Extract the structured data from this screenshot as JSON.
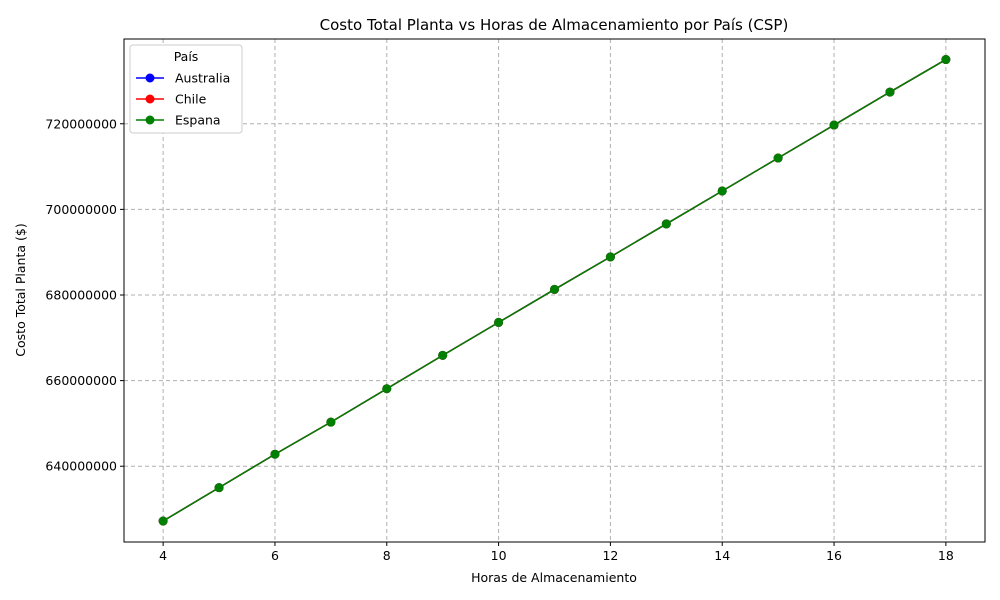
{
  "chart_data": {
    "type": "line",
    "title": "Costo Total Planta vs Horas de Almacenamiento por País (CSP)",
    "xlabel": "Horas de Almacenamiento",
    "ylabel": "Costo Total Planta ($)",
    "x": [
      4,
      5,
      6,
      7,
      8,
      9,
      10,
      11,
      12,
      13,
      14,
      15,
      16,
      17,
      18
    ],
    "xlim": [
      3.3,
      18.7
    ],
    "ylim": [
      622300000,
      739800000
    ],
    "xticks": [
      4,
      6,
      8,
      10,
      12,
      14,
      16,
      18
    ],
    "yticks": [
      640000000,
      660000000,
      680000000,
      700000000,
      720000000,
      740000000
    ],
    "grid": true,
    "legend": {
      "title": "País",
      "placement": "top-left"
    },
    "series": [
      {
        "name": "Australia",
        "color": "#0000ff",
        "values": [
          627200000,
          635000000,
          642800000,
          650300000,
          658100000,
          665900000,
          673600000,
          681300000,
          688900000,
          696600000,
          704300000,
          712000000,
          719700000,
          727400000,
          735000000
        ]
      },
      {
        "name": "Chile",
        "color": "#ff0000",
        "values": [
          627200000,
          635000000,
          642800000,
          650300000,
          658100000,
          665900000,
          673600000,
          681300000,
          688900000,
          696600000,
          704300000,
          712000000,
          719700000,
          727400000,
          735000000
        ]
      },
      {
        "name": "Espana",
        "color": "#008000",
        "values": [
          627200000,
          635000000,
          642800000,
          650300000,
          658100000,
          665900000,
          673600000,
          681300000,
          688900000,
          696600000,
          704300000,
          712000000,
          719700000,
          727400000,
          735000000
        ]
      }
    ]
  }
}
